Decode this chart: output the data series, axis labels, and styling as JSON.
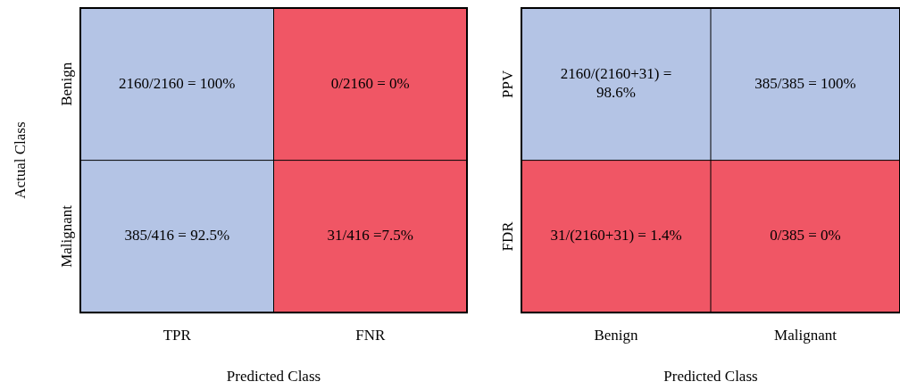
{
  "chart_data": [
    {
      "type": "heatmap",
      "xlabel": "Predicted Class",
      "ylabel": "Actual Class",
      "categories": [
        "TPR",
        "FNR"
      ],
      "y_categories": [
        "Benign",
        "Malignant"
      ],
      "cells": [
        [
          100,
          0
        ],
        [
          92.5,
          7.5
        ]
      ],
      "cell_labels": [
        [
          "100%",
          "0%"
        ],
        [
          "92.5%",
          "7.5%"
        ]
      ],
      "annotations": [
        "2160/2160 = ",
        "0/2160 = ",
        "385/416 = ",
        "31/416 ="
      ],
      "colors": [
        [
          "#b4c4e5",
          "#f05665"
        ],
        [
          "#b4c4e5",
          "#f05665"
        ]
      ],
      "data_labels": true
    },
    {
      "type": "heatmap",
      "xlabel": "Predicted Class",
      "categories": [
        "Benign",
        "Malignant"
      ],
      "y_categories": [
        "PPV",
        "FDR"
      ],
      "cells": [
        [
          98.6,
          100
        ],
        [
          1.4,
          0
        ]
      ],
      "cell_labels": [
        [
          "98.6%",
          "100%"
        ],
        [
          "1.4%",
          "0%"
        ]
      ],
      "annotations": [
        "2160/(2160+31) = ",
        "385/385 = ",
        "31/(2160+31) = ",
        "0/385 = "
      ],
      "colors": [
        [
          "#b4c4e5",
          "#b4c4e5"
        ],
        [
          "#f05665",
          "#f05665"
        ]
      ],
      "data_labels": true
    }
  ]
}
